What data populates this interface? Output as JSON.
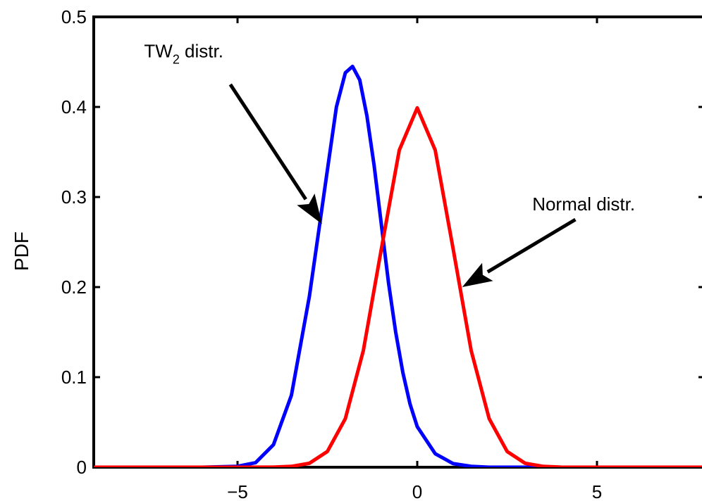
{
  "chart_data": {
    "type": "line",
    "title": "",
    "xlabel": "",
    "ylabel": "PDF",
    "xlim": [
      -9,
      8
    ],
    "ylim": [
      0,
      0.5
    ],
    "grid": false,
    "legend": "none",
    "x_ticks": [
      -5,
      0,
      5
    ],
    "x_tick_labels": [
      "−5",
      "0",
      "5"
    ],
    "y_ticks": [
      0,
      0.1,
      0.2,
      0.3,
      0.4,
      0.5
    ],
    "y_tick_labels": [
      "0",
      "0.1",
      "0.2",
      "0.3",
      "0.4",
      "0.5"
    ],
    "series": [
      {
        "color": "#0000ff",
        "x": [
          -9,
          -6,
          -5,
          -4.5,
          -4,
          -3.5,
          -3,
          -2.75,
          -2.5,
          -2.25,
          -2,
          -1.8,
          -1.6,
          -1.4,
          -1.2,
          -1,
          -0.8,
          -0.6,
          -0.4,
          -0.2,
          0,
          0.5,
          1,
          1.5,
          2,
          2.5,
          3,
          4,
          8
        ],
        "y": [
          0,
          0,
          0.001,
          0.005,
          0.025,
          0.08,
          0.19,
          0.26,
          0.33,
          0.4,
          0.438,
          0.445,
          0.43,
          0.39,
          0.335,
          0.27,
          0.205,
          0.15,
          0.105,
          0.07,
          0.045,
          0.015,
          0.004,
          0.001,
          0,
          0,
          0,
          0,
          0
        ]
      },
      {
        "color": "#ff0000",
        "x": [
          -9,
          -5,
          -4,
          -3.5,
          -3,
          -2.5,
          -2,
          -1.5,
          -1,
          -0.5,
          0,
          0.5,
          1,
          1.5,
          2,
          2.5,
          3,
          3.5,
          4,
          5,
          8
        ],
        "y": [
          0,
          0,
          0.0001,
          0.0009,
          0.0044,
          0.0175,
          0.054,
          0.1295,
          0.242,
          0.352,
          0.399,
          0.352,
          0.242,
          0.1295,
          0.054,
          0.0175,
          0.0044,
          0.0009,
          0.0001,
          0,
          0
        ]
      }
    ],
    "annotations": [
      {
        "text_main": "TW",
        "text_sub": "2",
        "text_rest": " distr.",
        "text_x": -7.6,
        "text_y": 0.455,
        "arrow_from": [
          -5.2,
          0.425
        ],
        "arrow_to": [
          -2.65,
          0.27
        ]
      },
      {
        "text": "Normal distr.",
        "text_x": 3.2,
        "text_y": 0.285,
        "arrow_from": [
          4.4,
          0.275
        ],
        "arrow_to": [
          1.25,
          0.2
        ]
      }
    ]
  }
}
